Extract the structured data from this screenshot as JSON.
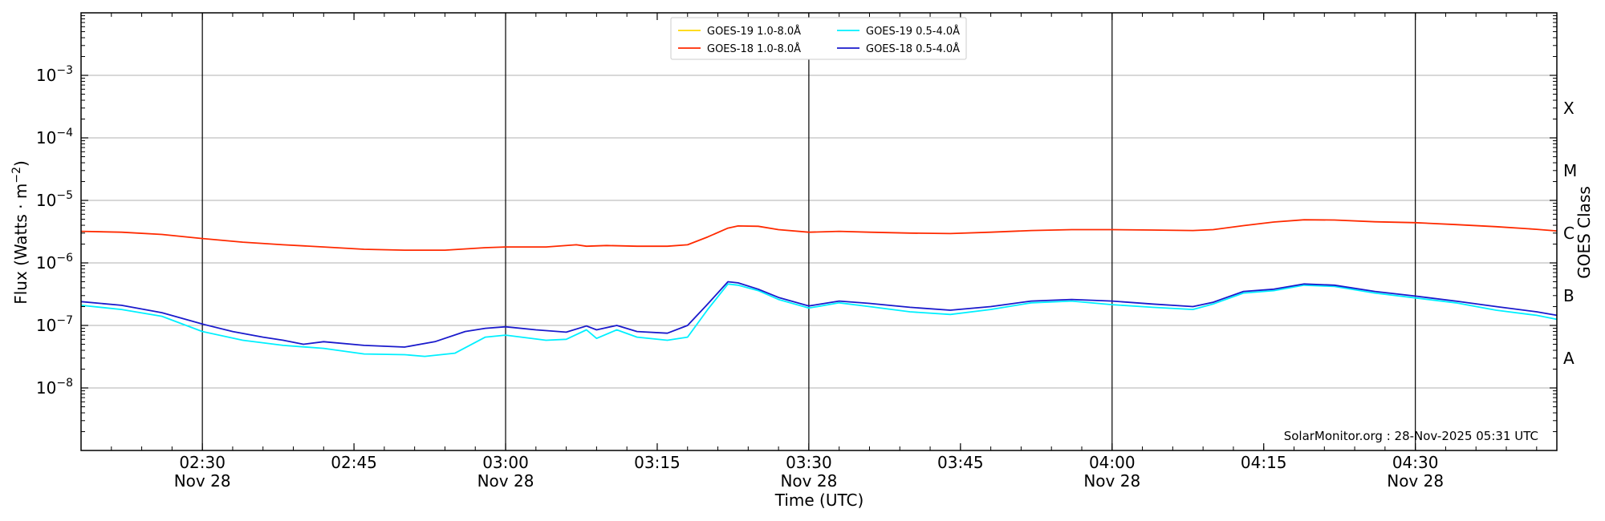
{
  "chart_data": {
    "type": "line",
    "xlabel": "Time (UTC)",
    "ylabel_main": "Flux (Watts · m",
    "ylabel_sup": "−2",
    "ylabel_close": ")",
    "right_axis_label": "GOES Class",
    "xlim": [
      "2025-11-28T02:18",
      "2025-11-28T04:44"
    ],
    "ylim": [
      1e-09,
      0.01
    ],
    "yscale": "log",
    "grid": "horizontal",
    "legend_position": "top-center",
    "watermark": "SolarMonitor.org : 28-Nov-2025 05:31 UTC",
    "x_ticks": [
      {
        "time": "2025-11-28T02:30",
        "label": "02:30",
        "date": "Nov 28",
        "major": true
      },
      {
        "time": "2025-11-28T02:45",
        "label": "02:45",
        "date": "",
        "major": false
      },
      {
        "time": "2025-11-28T03:00",
        "label": "03:00",
        "date": "Nov 28",
        "major": true
      },
      {
        "time": "2025-11-28T03:15",
        "label": "03:15",
        "date": "",
        "major": false
      },
      {
        "time": "2025-11-28T03:30",
        "label": "03:30",
        "date": "Nov 28",
        "major": true
      },
      {
        "time": "2025-11-28T03:45",
        "label": "03:45",
        "date": "",
        "major": false
      },
      {
        "time": "2025-11-28T04:00",
        "label": "04:00",
        "date": "Nov 28",
        "major": true
      },
      {
        "time": "2025-11-28T04:15",
        "label": "04:15",
        "date": "",
        "major": false
      },
      {
        "time": "2025-11-28T04:30",
        "label": "04:30",
        "date": "Nov 28",
        "major": true
      }
    ],
    "y_ticks": [
      {
        "value": 1e-08,
        "base": "10",
        "exp": "−8"
      },
      {
        "value": 1e-07,
        "base": "10",
        "exp": "−7"
      },
      {
        "value": 1e-06,
        "base": "10",
        "exp": "−6"
      },
      {
        "value": 1e-05,
        "base": "10",
        "exp": "−5"
      },
      {
        "value": 0.0001,
        "base": "10",
        "exp": "−4"
      },
      {
        "value": 0.001,
        "base": "10",
        "exp": "−3"
      }
    ],
    "classes": [
      {
        "label": "A",
        "value": 3e-08
      },
      {
        "label": "B",
        "value": 3e-07
      },
      {
        "label": "C",
        "value": 3e-06
      },
      {
        "label": "M",
        "value": 3e-05
      },
      {
        "label": "X",
        "value": 0.0003
      }
    ],
    "series": [
      {
        "name": "GOES-19 1.0-8.0Å",
        "color": "#ffd700",
        "x": [],
        "y": []
      },
      {
        "name": "GOES-18 1.0-8.0Å",
        "color": "#ff2a00",
        "x": [
          "2025-11-28T02:18",
          "2025-11-28T02:22",
          "2025-11-28T02:26",
          "2025-11-28T02:30",
          "2025-11-28T02:34",
          "2025-11-28T02:38",
          "2025-11-28T02:42",
          "2025-11-28T02:46",
          "2025-11-28T02:50",
          "2025-11-28T02:54",
          "2025-11-28T02:58",
          "2025-11-28T03:00",
          "2025-11-28T03:04",
          "2025-11-28T03:07",
          "2025-11-28T03:08",
          "2025-11-28T03:10",
          "2025-11-28T03:13",
          "2025-11-28T03:16",
          "2025-11-28T03:18",
          "2025-11-28T03:20",
          "2025-11-28T03:22",
          "2025-11-28T03:23",
          "2025-11-28T03:25",
          "2025-11-28T03:27",
          "2025-11-28T03:30",
          "2025-11-28T03:33",
          "2025-11-28T03:36",
          "2025-11-28T03:40",
          "2025-11-28T03:44",
          "2025-11-28T03:48",
          "2025-11-28T03:52",
          "2025-11-28T03:56",
          "2025-11-28T04:00",
          "2025-11-28T04:04",
          "2025-11-28T04:08",
          "2025-11-28T04:10",
          "2025-11-28T04:13",
          "2025-11-28T04:16",
          "2025-11-28T04:19",
          "2025-11-28T04:22",
          "2025-11-28T04:26",
          "2025-11-28T04:30",
          "2025-11-28T04:34",
          "2025-11-28T04:38",
          "2025-11-28T04:42",
          "2025-11-28T04:44"
        ],
        "y": [
          3.2e-06,
          3.1e-06,
          2.85e-06,
          2.45e-06,
          2.15e-06,
          1.95e-06,
          1.8e-06,
          1.65e-06,
          1.6e-06,
          1.6e-06,
          1.75e-06,
          1.8e-06,
          1.8e-06,
          1.95e-06,
          1.85e-06,
          1.9e-06,
          1.85e-06,
          1.85e-06,
          1.95e-06,
          2.6e-06,
          3.6e-06,
          3.9e-06,
          3.85e-06,
          3.4e-06,
          3.1e-06,
          3.2e-06,
          3.1e-06,
          3e-06,
          2.95e-06,
          3.1e-06,
          3.3e-06,
          3.4e-06,
          3.4e-06,
          3.35e-06,
          3.3e-06,
          3.4e-06,
          3.95e-06,
          4.5e-06,
          4.9e-06,
          4.85e-06,
          4.55e-06,
          4.4e-06,
          4.1e-06,
          3.8e-06,
          3.45e-06,
          3.25e-06
        ]
      },
      {
        "name": "GOES-19 0.5-4.0Å",
        "color": "#00f0ff",
        "x": [
          "2025-11-28T02:18",
          "2025-11-28T02:22",
          "2025-11-28T02:26",
          "2025-11-28T02:30",
          "2025-11-28T02:34",
          "2025-11-28T02:38",
          "2025-11-28T02:42",
          "2025-11-28T02:46",
          "2025-11-28T02:50",
          "2025-11-28T02:52",
          "2025-11-28T02:55",
          "2025-11-28T02:58",
          "2025-11-28T03:00",
          "2025-11-28T03:04",
          "2025-11-28T03:06",
          "2025-11-28T03:08",
          "2025-11-28T03:09",
          "2025-11-28T03:11",
          "2025-11-28T03:13",
          "2025-11-28T03:16",
          "2025-11-28T03:18",
          "2025-11-28T03:20",
          "2025-11-28T03:22",
          "2025-11-28T03:23",
          "2025-11-28T03:25",
          "2025-11-28T03:27",
          "2025-11-28T03:30",
          "2025-11-28T03:33",
          "2025-11-28T03:36",
          "2025-11-28T03:40",
          "2025-11-28T03:44",
          "2025-11-28T03:48",
          "2025-11-28T03:52",
          "2025-11-28T03:56",
          "2025-11-28T04:00",
          "2025-11-28T04:04",
          "2025-11-28T04:08",
          "2025-11-28T04:10",
          "2025-11-28T04:13",
          "2025-11-28T04:16",
          "2025-11-28T04:19",
          "2025-11-28T04:22",
          "2025-11-28T04:26",
          "2025-11-28T04:30",
          "2025-11-28T04:34",
          "2025-11-28T04:38",
          "2025-11-28T04:42",
          "2025-11-28T04:44"
        ],
        "y": [
          2.1e-07,
          1.8e-07,
          1.4e-07,
          8e-08,
          5.8e-08,
          4.8e-08,
          4.3e-08,
          3.5e-08,
          3.4e-08,
          3.2e-08,
          3.6e-08,
          6.5e-08,
          7e-08,
          5.8e-08,
          6e-08,
          8.5e-08,
          6.2e-08,
          8.5e-08,
          6.5e-08,
          5.8e-08,
          6.5e-08,
          1.8e-07,
          4.6e-07,
          4.4e-07,
          3.6e-07,
          2.6e-07,
          1.9e-07,
          2.3e-07,
          2e-07,
          1.65e-07,
          1.5e-07,
          1.8e-07,
          2.3e-07,
          2.45e-07,
          2.15e-07,
          1.95e-07,
          1.8e-07,
          2.2e-07,
          3.3e-07,
          3.6e-07,
          4.4e-07,
          4.2e-07,
          3.3e-07,
          2.75e-07,
          2.3e-07,
          1.75e-07,
          1.45e-07,
          1.25e-07
        ]
      },
      {
        "name": "GOES-18 0.5-4.0Å",
        "color": "#1a1acc",
        "x": [
          "2025-11-28T02:18",
          "2025-11-28T02:22",
          "2025-11-28T02:26",
          "2025-11-28T02:30",
          "2025-11-28T02:33",
          "2025-11-28T02:36",
          "2025-11-28T02:38",
          "2025-11-28T02:40",
          "2025-11-28T02:42",
          "2025-11-28T02:46",
          "2025-11-28T02:50",
          "2025-11-28T02:53",
          "2025-11-28T02:56",
          "2025-11-28T02:58",
          "2025-11-28T03:00",
          "2025-11-28T03:03",
          "2025-11-28T03:06",
          "2025-11-28T03:08",
          "2025-11-28T03:09",
          "2025-11-28T03:11",
          "2025-11-28T03:13",
          "2025-11-28T03:16",
          "2025-11-28T03:18",
          "2025-11-28T03:20",
          "2025-11-28T03:22",
          "2025-11-28T03:23",
          "2025-11-28T03:25",
          "2025-11-28T03:27",
          "2025-11-28T03:30",
          "2025-11-28T03:33",
          "2025-11-28T03:36",
          "2025-11-28T03:40",
          "2025-11-28T03:44",
          "2025-11-28T03:48",
          "2025-11-28T03:52",
          "2025-11-28T03:56",
          "2025-11-28T04:00",
          "2025-11-28T04:04",
          "2025-11-28T04:08",
          "2025-11-28T04:10",
          "2025-11-28T04:13",
          "2025-11-28T04:16",
          "2025-11-28T04:19",
          "2025-11-28T04:22",
          "2025-11-28T04:26",
          "2025-11-28T04:30",
          "2025-11-28T04:34",
          "2025-11-28T04:38",
          "2025-11-28T04:42",
          "2025-11-28T04:44"
        ],
        "y": [
          2.4e-07,
          2.1e-07,
          1.6e-07,
          1.05e-07,
          8e-08,
          6.5e-08,
          5.8e-08,
          5e-08,
          5.5e-08,
          4.8e-08,
          4.5e-08,
          5.5e-08,
          8e-08,
          9e-08,
          9.5e-08,
          8.5e-08,
          7.8e-08,
          9.8e-08,
          8.5e-08,
          1e-07,
          8e-08,
          7.5e-08,
          1e-07,
          2.2e-07,
          5e-07,
          4.8e-07,
          3.8e-07,
          2.8e-07,
          2.05e-07,
          2.45e-07,
          2.25e-07,
          1.95e-07,
          1.75e-07,
          2e-07,
          2.45e-07,
          2.6e-07,
          2.45e-07,
          2.2e-07,
          2e-07,
          2.35e-07,
          3.5e-07,
          3.8e-07,
          4.6e-07,
          4.4e-07,
          3.5e-07,
          2.95e-07,
          2.45e-07,
          2e-07,
          1.65e-07,
          1.45e-07
        ]
      }
    ]
  }
}
